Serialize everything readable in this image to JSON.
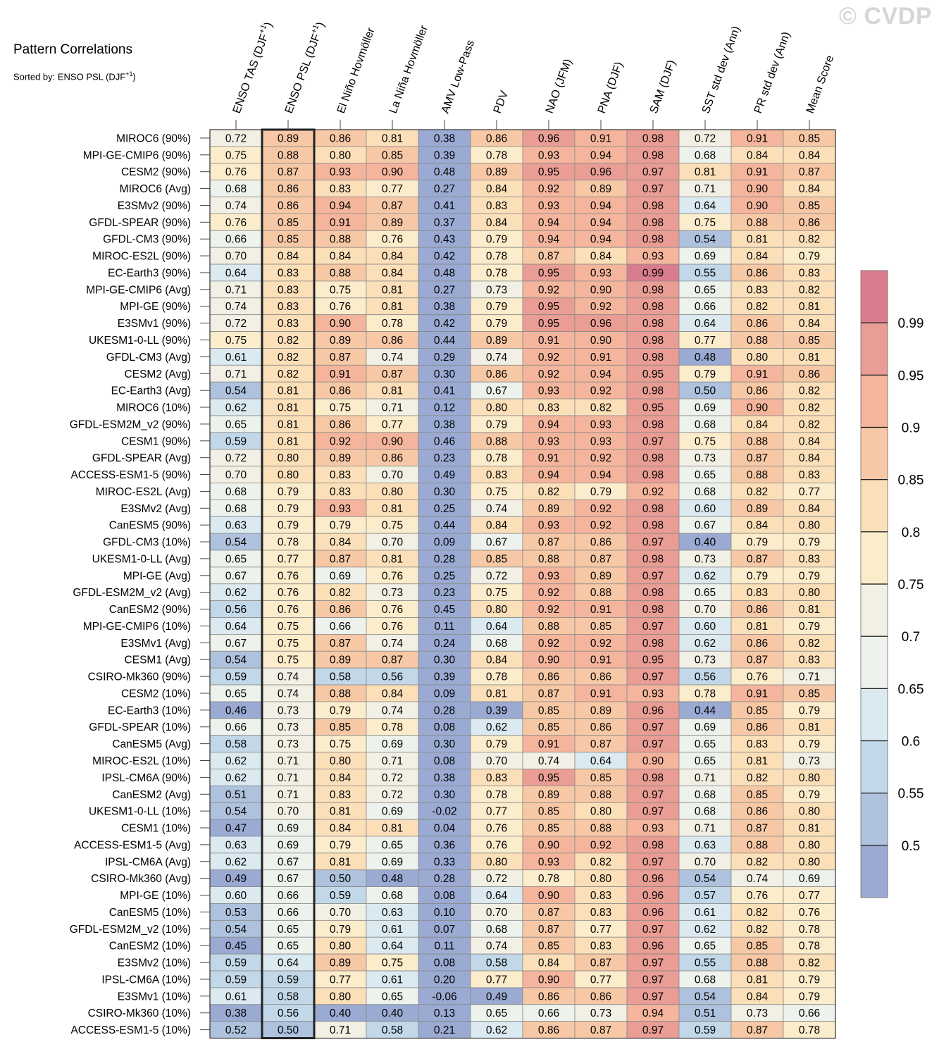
{
  "chart_data": {
    "type": "heatmap",
    "title": "Pattern Correlations",
    "subtitle_prefix": "Sorted by: ENSO PSL (DJF",
    "subtitle_sup": "+1",
    "subtitle_suffix": ")",
    "watermark": "© CVDP",
    "columns": [
      {
        "label": "ENSO TAS (DJF",
        "sup": "+1",
        "after": ")"
      },
      {
        "label": "ENSO PSL (DJF",
        "sup": "+1",
        "after": ")"
      },
      {
        "label": "El Niño Hovmöller"
      },
      {
        "label": "La Niña Hovmöller"
      },
      {
        "label": "AMV Low-Pass"
      },
      {
        "label": "PDV"
      },
      {
        "label": "NAO (JFM)"
      },
      {
        "label": "PNA (DJF)"
      },
      {
        "label": "SAM (DJF)"
      },
      {
        "label": "SST std dev (Ann)"
      },
      {
        "label": "PR std dev (Ann)"
      },
      {
        "label": "Mean Score"
      }
    ],
    "highlighted_column": 1,
    "rows": [
      {
        "name": "MIROC6 (90%)",
        "values": [
          "0.72",
          "0.89",
          "0.86",
          "0.81",
          "0.38",
          "0.86",
          "0.96",
          "0.91",
          "0.98",
          "0.72",
          "0.91",
          "0.85"
        ]
      },
      {
        "name": "MPI-GE-CMIP6 (90%)",
        "values": [
          "0.75",
          "0.88",
          "0.80",
          "0.85",
          "0.39",
          "0.78",
          "0.93",
          "0.94",
          "0.98",
          "0.68",
          "0.84",
          "0.84"
        ]
      },
      {
        "name": "CESM2 (90%)",
        "values": [
          "0.76",
          "0.87",
          "0.93",
          "0.90",
          "0.48",
          "0.89",
          "0.95",
          "0.96",
          "0.97",
          "0.81",
          "0.91",
          "0.87"
        ]
      },
      {
        "name": "MIROC6 (Avg)",
        "values": [
          "0.68",
          "0.86",
          "0.83",
          "0.77",
          "0.27",
          "0.84",
          "0.92",
          "0.89",
          "0.97",
          "0.71",
          "0.90",
          "0.84"
        ]
      },
      {
        "name": "E3SMv2 (90%)",
        "values": [
          "0.74",
          "0.86",
          "0.94",
          "0.87",
          "0.41",
          "0.83",
          "0.93",
          "0.94",
          "0.98",
          "0.64",
          "0.90",
          "0.85"
        ]
      },
      {
        "name": "GFDL-SPEAR (90%)",
        "values": [
          "0.76",
          "0.85",
          "0.91",
          "0.89",
          "0.37",
          "0.84",
          "0.94",
          "0.94",
          "0.98",
          "0.75",
          "0.88",
          "0.86"
        ]
      },
      {
        "name": "GFDL-CM3 (90%)",
        "values": [
          "0.66",
          "0.85",
          "0.88",
          "0.76",
          "0.43",
          "0.79",
          "0.94",
          "0.94",
          "0.98",
          "0.54",
          "0.81",
          "0.82"
        ]
      },
      {
        "name": "MIROC-ES2L (90%)",
        "values": [
          "0.70",
          "0.84",
          "0.84",
          "0.84",
          "0.42",
          "0.78",
          "0.87",
          "0.84",
          "0.93",
          "0.69",
          "0.84",
          "0.79"
        ]
      },
      {
        "name": "EC-Earth3 (90%)",
        "values": [
          "0.64",
          "0.83",
          "0.88",
          "0.84",
          "0.48",
          "0.78",
          "0.95",
          "0.93",
          "0.99",
          "0.55",
          "0.86",
          "0.83"
        ]
      },
      {
        "name": "MPI-GE-CMIP6 (Avg)",
        "values": [
          "0.71",
          "0.83",
          "0.75",
          "0.81",
          "0.27",
          "0.73",
          "0.92",
          "0.90",
          "0.98",
          "0.65",
          "0.83",
          "0.82"
        ]
      },
      {
        "name": "MPI-GE (90%)",
        "values": [
          "0.74",
          "0.83",
          "0.76",
          "0.81",
          "0.38",
          "0.79",
          "0.95",
          "0.92",
          "0.98",
          "0.66",
          "0.82",
          "0.81"
        ]
      },
      {
        "name": "E3SMv1 (90%)",
        "values": [
          "0.72",
          "0.83",
          "0.90",
          "0.78",
          "0.42",
          "0.79",
          "0.95",
          "0.96",
          "0.98",
          "0.64",
          "0.86",
          "0.84"
        ]
      },
      {
        "name": "UKESM1-0-LL (90%)",
        "values": [
          "0.75",
          "0.82",
          "0.89",
          "0.86",
          "0.44",
          "0.89",
          "0.91",
          "0.90",
          "0.98",
          "0.77",
          "0.88",
          "0.85"
        ]
      },
      {
        "name": "GFDL-CM3 (Avg)",
        "values": [
          "0.61",
          "0.82",
          "0.87",
          "0.74",
          "0.29",
          "0.74",
          "0.92",
          "0.91",
          "0.98",
          "0.48",
          "0.80",
          "0.81"
        ]
      },
      {
        "name": "CESM2 (Avg)",
        "values": [
          "0.71",
          "0.82",
          "0.91",
          "0.87",
          "0.30",
          "0.86",
          "0.92",
          "0.94",
          "0.95",
          "0.79",
          "0.91",
          "0.86"
        ]
      },
      {
        "name": "EC-Earth3 (Avg)",
        "values": [
          "0.54",
          "0.81",
          "0.86",
          "0.81",
          "0.41",
          "0.67",
          "0.93",
          "0.92",
          "0.98",
          "0.50",
          "0.86",
          "0.82"
        ]
      },
      {
        "name": "MIROC6 (10%)",
        "values": [
          "0.62",
          "0.81",
          "0.75",
          "0.71",
          "0.12",
          "0.80",
          "0.83",
          "0.82",
          "0.95",
          "0.69",
          "0.90",
          "0.82"
        ]
      },
      {
        "name": "GFDL-ESM2M_v2 (90%)",
        "values": [
          "0.65",
          "0.81",
          "0.86",
          "0.77",
          "0.38",
          "0.79",
          "0.94",
          "0.93",
          "0.98",
          "0.68",
          "0.84",
          "0.82"
        ]
      },
      {
        "name": "CESM1 (90%)",
        "values": [
          "0.59",
          "0.81",
          "0.92",
          "0.90",
          "0.46",
          "0.88",
          "0.93",
          "0.93",
          "0.97",
          "0.75",
          "0.88",
          "0.84"
        ]
      },
      {
        "name": "GFDL-SPEAR (Avg)",
        "values": [
          "0.72",
          "0.80",
          "0.89",
          "0.86",
          "0.23",
          "0.78",
          "0.91",
          "0.92",
          "0.98",
          "0.73",
          "0.87",
          "0.84"
        ]
      },
      {
        "name": "ACCESS-ESM1-5 (90%)",
        "values": [
          "0.70",
          "0.80",
          "0.83",
          "0.70",
          "0.49",
          "0.83",
          "0.94",
          "0.94",
          "0.98",
          "0.65",
          "0.88",
          "0.83"
        ]
      },
      {
        "name": "MIROC-ES2L (Avg)",
        "values": [
          "0.68",
          "0.79",
          "0.83",
          "0.80",
          "0.30",
          "0.75",
          "0.82",
          "0.79",
          "0.92",
          "0.68",
          "0.82",
          "0.77"
        ]
      },
      {
        "name": "E3SMv2 (Avg)",
        "values": [
          "0.68",
          "0.79",
          "0.93",
          "0.81",
          "0.25",
          "0.74",
          "0.89",
          "0.92",
          "0.98",
          "0.60",
          "0.89",
          "0.84"
        ]
      },
      {
        "name": "CanESM5 (90%)",
        "values": [
          "0.63",
          "0.79",
          "0.79",
          "0.75",
          "0.44",
          "0.84",
          "0.93",
          "0.92",
          "0.98",
          "0.67",
          "0.84",
          "0.80"
        ]
      },
      {
        "name": "GFDL-CM3 (10%)",
        "values": [
          "0.54",
          "0.78",
          "0.84",
          "0.70",
          "0.09",
          "0.67",
          "0.87",
          "0.86",
          "0.97",
          "0.40",
          "0.79",
          "0.79"
        ]
      },
      {
        "name": "UKESM1-0-LL (Avg)",
        "values": [
          "0.65",
          "0.77",
          "0.87",
          "0.81",
          "0.28",
          "0.85",
          "0.88",
          "0.87",
          "0.98",
          "0.73",
          "0.87",
          "0.83"
        ]
      },
      {
        "name": "MPI-GE (Avg)",
        "values": [
          "0.67",
          "0.76",
          "0.69",
          "0.76",
          "0.25",
          "0.72",
          "0.93",
          "0.89",
          "0.97",
          "0.62",
          "0.79",
          "0.79"
        ]
      },
      {
        "name": "GFDL-ESM2M_v2 (Avg)",
        "values": [
          "0.62",
          "0.76",
          "0.82",
          "0.73",
          "0.23",
          "0.75",
          "0.92",
          "0.88",
          "0.98",
          "0.65",
          "0.83",
          "0.80"
        ]
      },
      {
        "name": "CanESM2 (90%)",
        "values": [
          "0.56",
          "0.76",
          "0.86",
          "0.76",
          "0.45",
          "0.80",
          "0.92",
          "0.91",
          "0.98",
          "0.70",
          "0.86",
          "0.81"
        ]
      },
      {
        "name": "MPI-GE-CMIP6 (10%)",
        "values": [
          "0.64",
          "0.75",
          "0.66",
          "0.76",
          "0.11",
          "0.64",
          "0.88",
          "0.85",
          "0.97",
          "0.60",
          "0.81",
          "0.79"
        ]
      },
      {
        "name": "E3SMv1 (Avg)",
        "values": [
          "0.67",
          "0.75",
          "0.87",
          "0.74",
          "0.24",
          "0.68",
          "0.92",
          "0.92",
          "0.98",
          "0.62",
          "0.86",
          "0.82"
        ]
      },
      {
        "name": "CESM1 (Avg)",
        "values": [
          "0.54",
          "0.75",
          "0.89",
          "0.87",
          "0.30",
          "0.84",
          "0.90",
          "0.91",
          "0.95",
          "0.73",
          "0.87",
          "0.83"
        ]
      },
      {
        "name": "CSIRO-Mk360 (90%)",
        "values": [
          "0.59",
          "0.74",
          "0.58",
          "0.56",
          "0.39",
          "0.78",
          "0.86",
          "0.86",
          "0.97",
          "0.56",
          "0.76",
          "0.71"
        ]
      },
      {
        "name": "CESM2 (10%)",
        "values": [
          "0.65",
          "0.74",
          "0.88",
          "0.84",
          "0.09",
          "0.81",
          "0.87",
          "0.91",
          "0.93",
          "0.78",
          "0.91",
          "0.85"
        ]
      },
      {
        "name": "EC-Earth3 (10%)",
        "values": [
          "0.46",
          "0.73",
          "0.79",
          "0.74",
          "0.28",
          "0.39",
          "0.85",
          "0.89",
          "0.96",
          "0.44",
          "0.85",
          "0.79"
        ]
      },
      {
        "name": "GFDL-SPEAR (10%)",
        "values": [
          "0.66",
          "0.73",
          "0.85",
          "0.78",
          "0.08",
          "0.62",
          "0.85",
          "0.86",
          "0.97",
          "0.69",
          "0.86",
          "0.81"
        ]
      },
      {
        "name": "CanESM5 (Avg)",
        "values": [
          "0.58",
          "0.73",
          "0.75",
          "0.69",
          "0.30",
          "0.79",
          "0.91",
          "0.87",
          "0.97",
          "0.65",
          "0.83",
          "0.79"
        ]
      },
      {
        "name": "MIROC-ES2L (10%)",
        "values": [
          "0.62",
          "0.71",
          "0.80",
          "0.71",
          "0.08",
          "0.70",
          "0.74",
          "0.64",
          "0.90",
          "0.65",
          "0.81",
          "0.73"
        ]
      },
      {
        "name": "IPSL-CM6A (90%)",
        "values": [
          "0.62",
          "0.71",
          "0.84",
          "0.72",
          "0.38",
          "0.83",
          "0.95",
          "0.85",
          "0.98",
          "0.71",
          "0.82",
          "0.80"
        ]
      },
      {
        "name": "CanESM2 (Avg)",
        "values": [
          "0.51",
          "0.71",
          "0.83",
          "0.72",
          "0.30",
          "0.78",
          "0.89",
          "0.88",
          "0.97",
          "0.68",
          "0.85",
          "0.79"
        ]
      },
      {
        "name": "UKESM1-0-LL (10%)",
        "values": [
          "0.54",
          "0.70",
          "0.81",
          "0.69",
          "-0.02",
          "0.77",
          "0.85",
          "0.80",
          "0.97",
          "0.68",
          "0.86",
          "0.80"
        ]
      },
      {
        "name": "CESM1 (10%)",
        "values": [
          "0.47",
          "0.69",
          "0.84",
          "0.81",
          "0.04",
          "0.76",
          "0.85",
          "0.88",
          "0.93",
          "0.71",
          "0.87",
          "0.81"
        ]
      },
      {
        "name": "ACCESS-ESM1-5 (Avg)",
        "values": [
          "0.63",
          "0.69",
          "0.79",
          "0.65",
          "0.36",
          "0.76",
          "0.90",
          "0.92",
          "0.98",
          "0.63",
          "0.88",
          "0.80"
        ]
      },
      {
        "name": "IPSL-CM6A (Avg)",
        "values": [
          "0.62",
          "0.67",
          "0.81",
          "0.69",
          "0.33",
          "0.80",
          "0.93",
          "0.82",
          "0.97",
          "0.70",
          "0.82",
          "0.80"
        ]
      },
      {
        "name": "CSIRO-Mk360 (Avg)",
        "values": [
          "0.49",
          "0.67",
          "0.50",
          "0.48",
          "0.28",
          "0.72",
          "0.78",
          "0.80",
          "0.96",
          "0.54",
          "0.74",
          "0.69"
        ]
      },
      {
        "name": "MPI-GE (10%)",
        "values": [
          "0.60",
          "0.66",
          "0.59",
          "0.68",
          "0.08",
          "0.64",
          "0.90",
          "0.83",
          "0.96",
          "0.57",
          "0.76",
          "0.77"
        ]
      },
      {
        "name": "CanESM5 (10%)",
        "values": [
          "0.53",
          "0.66",
          "0.70",
          "0.63",
          "0.10",
          "0.70",
          "0.87",
          "0.83",
          "0.96",
          "0.61",
          "0.82",
          "0.76"
        ]
      },
      {
        "name": "GFDL-ESM2M_v2 (10%)",
        "values": [
          "0.54",
          "0.65",
          "0.79",
          "0.61",
          "0.07",
          "0.68",
          "0.87",
          "0.77",
          "0.97",
          "0.62",
          "0.82",
          "0.78"
        ]
      },
      {
        "name": "CanESM2 (10%)",
        "values": [
          "0.45",
          "0.65",
          "0.80",
          "0.64",
          "0.11",
          "0.74",
          "0.85",
          "0.83",
          "0.96",
          "0.65",
          "0.85",
          "0.78"
        ]
      },
      {
        "name": "E3SMv2 (10%)",
        "values": [
          "0.59",
          "0.64",
          "0.89",
          "0.75",
          "0.08",
          "0.58",
          "0.84",
          "0.87",
          "0.97",
          "0.55",
          "0.88",
          "0.82"
        ]
      },
      {
        "name": "IPSL-CM6A (10%)",
        "values": [
          "0.59",
          "0.59",
          "0.77",
          "0.61",
          "0.20",
          "0.77",
          "0.90",
          "0.77",
          "0.97",
          "0.68",
          "0.81",
          "0.79"
        ]
      },
      {
        "name": "E3SMv1 (10%)",
        "values": [
          "0.61",
          "0.58",
          "0.80",
          "0.65",
          "-0.06",
          "0.49",
          "0.86",
          "0.86",
          "0.97",
          "0.54",
          "0.84",
          "0.79"
        ]
      },
      {
        "name": "CSIRO-Mk360 (10%)",
        "values": [
          "0.38",
          "0.56",
          "0.40",
          "0.40",
          "0.13",
          "0.65",
          "0.66",
          "0.73",
          "0.94",
          "0.51",
          "0.73",
          "0.66"
        ]
      },
      {
        "name": "ACCESS-ESM1-5 (10%)",
        "values": [
          "0.52",
          "0.50",
          "0.71",
          "0.58",
          "0.21",
          "0.62",
          "0.86",
          "0.87",
          "0.97",
          "0.59",
          "0.87",
          "0.78"
        ]
      }
    ],
    "colorbar": {
      "levels": [
        0.5,
        0.55,
        0.6,
        0.65,
        0.7,
        0.75,
        0.8,
        0.85,
        0.9,
        0.95,
        0.99
      ],
      "tick_labels": [
        "0.5",
        "0.55",
        "0.6",
        "0.65",
        "0.7",
        "0.75",
        "0.8",
        "0.85",
        "0.9",
        "0.95",
        "0.99"
      ],
      "colors": [
        "#9aaad2",
        "#afc2dd",
        "#c2d8e8",
        "#dbe9f0",
        "#eef2ec",
        "#f2f0e4",
        "#fbeccb",
        "#fbdfb8",
        "#f7c8a5",
        "#f4b59c",
        "#e99d94",
        "#d97c8d"
      ]
    }
  }
}
